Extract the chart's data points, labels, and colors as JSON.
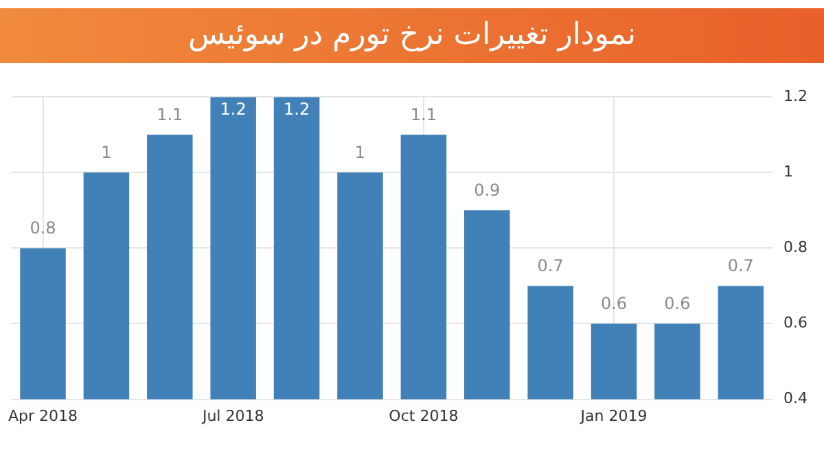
{
  "chart_data": {
    "type": "bar",
    "title": "نمودار تغییرات نرخ تورم در سوئیس",
    "categories": [
      "Apr 2018",
      null,
      null,
      "Jul 2018",
      null,
      null,
      "Oct 2018",
      null,
      null,
      "Jan 2019",
      null,
      null
    ],
    "values": [
      0.8,
      1,
      1.1,
      1.2,
      1.2,
      1,
      1.1,
      0.9,
      0.7,
      0.6,
      0.6,
      0.7
    ],
    "color": "#4281b8",
    "ylim": [
      0.4,
      1.2
    ],
    "yticks": [
      0.4,
      0.6,
      0.8,
      1,
      1.2
    ],
    "grid": true,
    "data_labels": true
  }
}
